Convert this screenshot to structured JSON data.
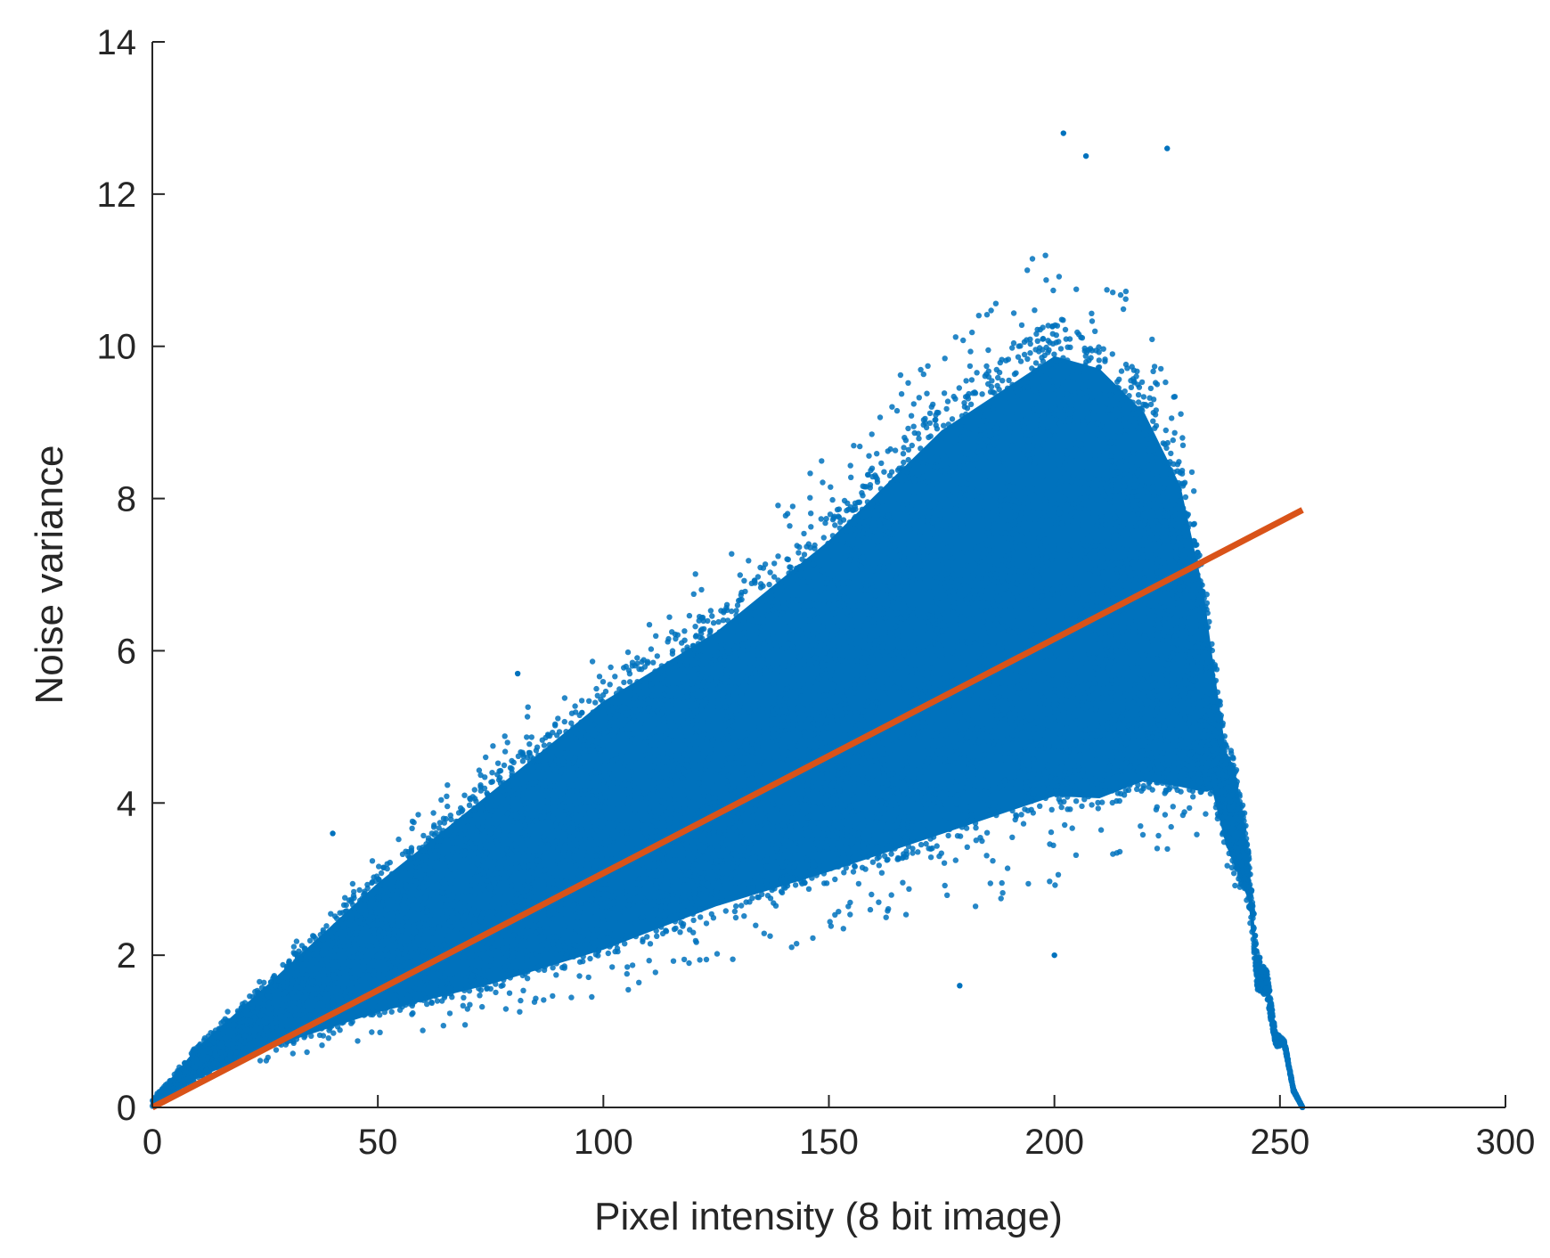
{
  "chart_data": {
    "type": "scatter",
    "title": "",
    "xlabel": "Pixel intensity (8 bit image)",
    "ylabel": "Noise variance",
    "xlim": [
      0,
      300
    ],
    "ylim": [
      0,
      14
    ],
    "xticks": [
      "0",
      "50",
      "100",
      "150",
      "200",
      "250",
      "300"
    ],
    "yticks": [
      "0",
      "2",
      "4",
      "6",
      "8",
      "10",
      "12",
      "14"
    ],
    "grid": false,
    "legend": "none",
    "colors": {
      "points": "#0072BD",
      "fit_line": "#D95319",
      "axis": "#262626"
    },
    "series": [
      {
        "kind": "scatter",
        "description_points": "dense cloud of per-pixel variance estimates",
        "envelope": {
          "x": [
            0,
            10,
            25,
            50,
            75,
            100,
            125,
            150,
            175,
            200,
            210,
            220,
            228,
            233,
            235,
            238,
            240,
            243,
            245,
            247,
            249,
            251,
            253,
            255
          ],
          "upper": [
            0.1,
            0.9,
            1.8,
            3.4,
            4.8,
            6.2,
            7.2,
            8.6,
            10.3,
            11.4,
            11.2,
            10.4,
            9.2,
            7.5,
            6.4,
            5.0,
            4.8,
            3.5,
            2.0,
            1.9,
            1.0,
            0.9,
            0.25,
            0.0
          ],
          "lower": [
            0.0,
            0.3,
            0.6,
            0.9,
            1.1,
            1.4,
            1.9,
            2.2,
            2.5,
            2.9,
            2.9,
            3.3,
            3.4,
            3.6,
            3.8,
            3.2,
            2.9,
            2.6,
            1.5,
            1.4,
            0.8,
            0.8,
            0.2,
            0.0
          ]
        },
        "outliers": [
          [
            202,
            12.8
          ],
          [
            207,
            12.5
          ],
          [
            225,
            12.6
          ],
          [
            160,
            7.6
          ],
          [
            81,
            5.7
          ],
          [
            40,
            3.6
          ],
          [
            200,
            2.0
          ],
          [
            179,
            1.6
          ]
        ]
      },
      {
        "kind": "line",
        "description_line": "linear fit",
        "x": [
          0,
          255
        ],
        "y": [
          0.0,
          7.85
        ]
      }
    ]
  }
}
